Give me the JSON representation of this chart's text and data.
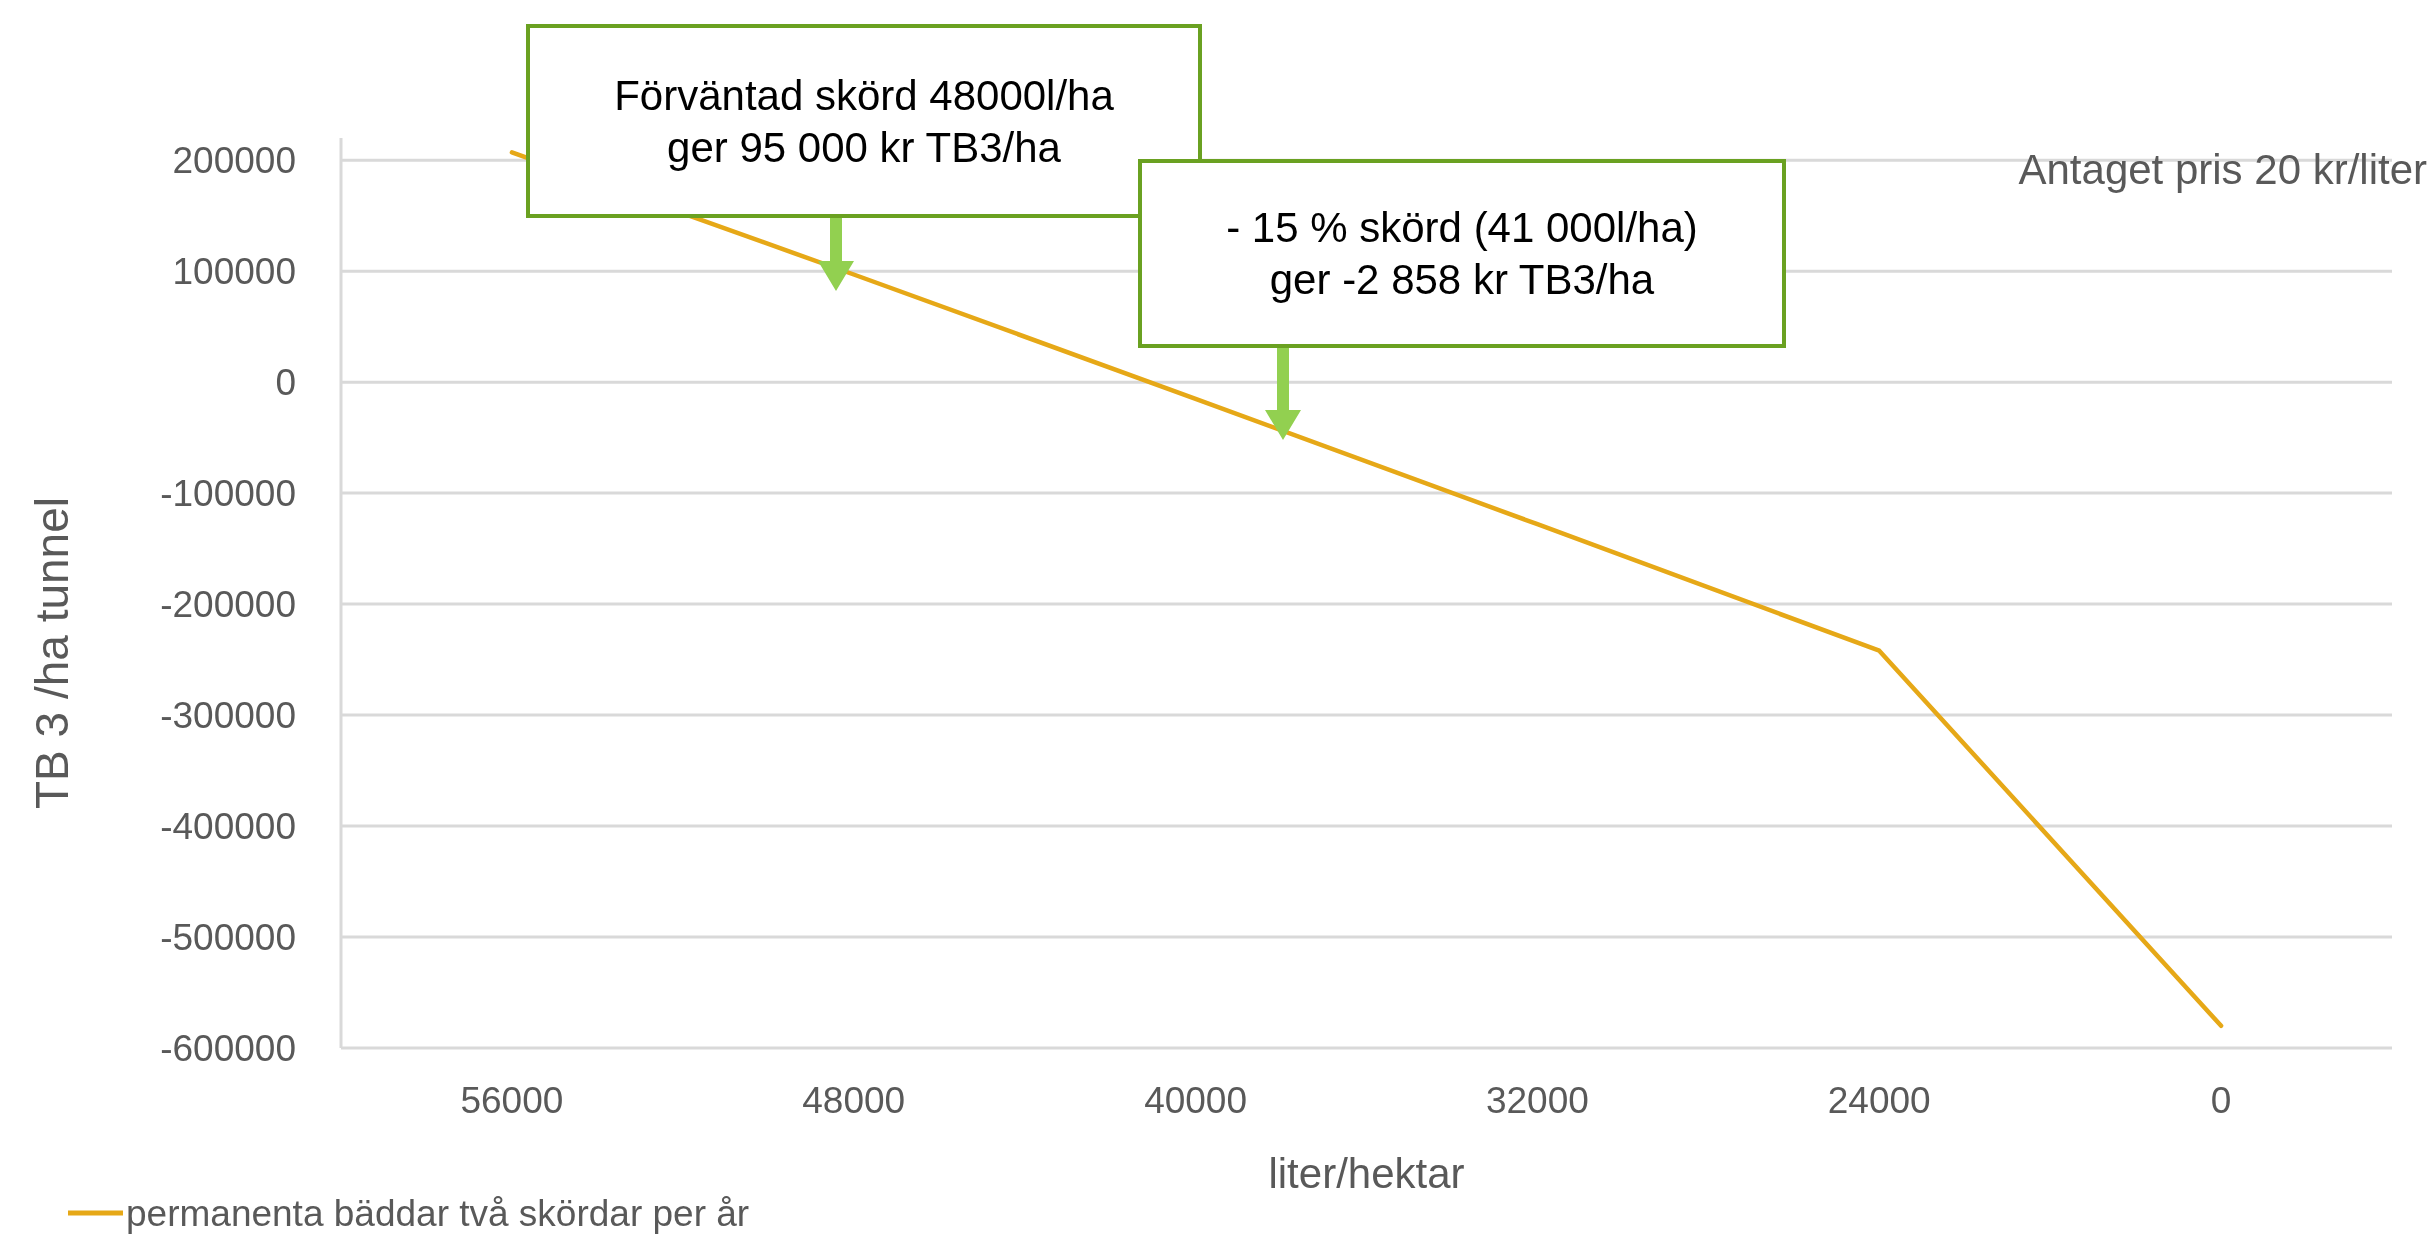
{
  "chart_data": {
    "type": "line",
    "xlabel": "liter/hektar",
    "ylabel": "TB 3 /ha tunnel",
    "categories": [
      "56000",
      "48000",
      "40000",
      "32000",
      "24000",
      "0"
    ],
    "series": [
      {
        "name": "permanenta bäddar två skördar per år",
        "color": "#e6a817",
        "values": [
          207000,
          97000,
          -15000,
          -128000,
          -242000,
          -580000
        ]
      }
    ],
    "ylim": [
      -600000,
      220000
    ],
    "yticks": [
      -600000,
      -500000,
      -400000,
      -300000,
      -200000,
      -100000,
      0,
      100000,
      200000
    ],
    "grid": "y",
    "legend": "bottom left",
    "marker": "none",
    "line_style": "solid",
    "annotations": [
      "Förväntad skörd 48000l/ha\nger 95 000 kr TB3/ha",
      "- 15 % skörd  (41 000l/ha)\nger -2 858 kr TB3/ha",
      "Antaget pris 20 kr/liter"
    ]
  }
}
